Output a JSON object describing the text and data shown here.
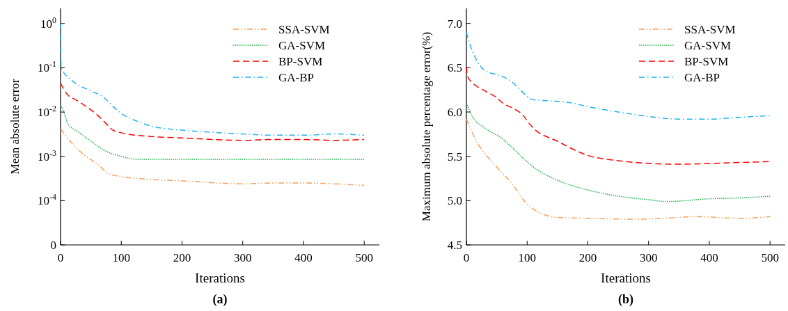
{
  "chart_data": [
    {
      "type": "line",
      "title": "(a)",
      "xlabel": "Iterations",
      "ylabel": "Mean absolute error",
      "log": "y",
      "xlim": [
        0,
        525
      ],
      "xticks": [
        0,
        100,
        200,
        300,
        400,
        500
      ],
      "ylim": [
        1e-05,
        2.2
      ],
      "yticks": [
        {
          "value": 1e-05,
          "label": "0"
        },
        {
          "value": 0.0001,
          "label": "10$^{-4}$"
        },
        {
          "value": 0.001,
          "label": "10$^{-3}$"
        },
        {
          "value": 0.01,
          "label": "10$^{-2}$"
        },
        {
          "value": 0.1,
          "label": "10$^{-1}$"
        },
        {
          "value": 1,
          "label": "10$^{0}$"
        }
      ],
      "grid": false,
      "legend": "top right",
      "series": [
        {
          "name": "SSA-SVM",
          "color": "#f5a05a",
          "line_style": "dashdotdot",
          "x": [
            0,
            20,
            40,
            60,
            80,
            100,
            150,
            200,
            300,
            350,
            400,
            450,
            500
          ],
          "values": [
            0.0042,
            0.0019,
            0.00105,
            0.00068,
            0.0004,
            0.00035,
            0.0003,
            0.00028,
            0.00024,
            0.00025,
            0.00025,
            0.00024,
            0.00022
          ]
        },
        {
          "name": "GA-SVM",
          "color": "#22b04b",
          "line_style": "dotted",
          "x": [
            0,
            5,
            12,
            30,
            50,
            75,
            100,
            125,
            500
          ],
          "values": [
            0.0146,
            0.0105,
            0.0055,
            0.0035,
            0.0022,
            0.0013,
            0.001,
            0.00086,
            0.00086
          ]
        },
        {
          "name": "BP-SVM",
          "color": "#ff0000",
          "line_style": "dashed",
          "x": [
            0,
            10,
            25,
            40,
            60,
            75,
            85,
            100,
            150,
            200,
            300,
            350,
            400,
            450,
            500
          ],
          "values": [
            0.045,
            0.026,
            0.019,
            0.014,
            0.0087,
            0.0055,
            0.004,
            0.0034,
            0.0028,
            0.0026,
            0.0023,
            0.0024,
            0.0024,
            0.0023,
            0.0024
          ]
        },
        {
          "name": "GA-BP",
          "color": "#1eb4f0",
          "line_style": "dashdot",
          "x": [
            0,
            1,
            20,
            50,
            70,
            85,
            100,
            125,
            150,
            200,
            250,
            300,
            350,
            400,
            450,
            500
          ],
          "values": [
            1,
            0.1,
            0.05,
            0.03,
            0.022,
            0.014,
            0.0093,
            0.0063,
            0.0048,
            0.0039,
            0.0035,
            0.0032,
            0.003,
            0.003,
            0.0032,
            0.003
          ]
        }
      ]
    },
    {
      "type": "line",
      "title": "(b)",
      "xlabel": "Iterations",
      "ylabel": "Maximum absolute percentage error(%)",
      "xlim": [
        0,
        525
      ],
      "xticks": [
        0,
        100,
        200,
        300,
        400,
        500
      ],
      "ylim": [
        4.5,
        7.17
      ],
      "yticks": [
        {
          "value": 4.5,
          "label": "4.5"
        },
        {
          "value": 5,
          "label": "5.0"
        },
        {
          "value": 5.5,
          "label": "5.5"
        },
        {
          "value": 6,
          "label": "6.0"
        },
        {
          "value": 6.5,
          "label": "6.5"
        },
        {
          "value": 7,
          "label": "7.0"
        }
      ],
      "grid": false,
      "legend": "top right",
      "series": [
        {
          "name": "SSA-SVM",
          "color": "#f5a05a",
          "line_style": "dashdotdot",
          "x": [
            0,
            15,
            50,
            75,
            100,
            125,
            150,
            200,
            280,
            350,
            375,
            450,
            500
          ],
          "values": [
            5.92,
            5.69,
            5.38,
            5.19,
            4.96,
            4.85,
            4.81,
            4.8,
            4.79,
            4.81,
            4.82,
            4.8,
            4.82
          ]
        },
        {
          "name": "GA-SVM",
          "color": "#22b04b",
          "line_style": "dotted",
          "x": [
            0,
            10,
            30,
            57,
            75,
            95,
            110,
            150,
            200,
            250,
            300,
            330,
            400,
            450,
            500
          ],
          "values": [
            6.1,
            5.95,
            5.82,
            5.71,
            5.6,
            5.47,
            5.38,
            5.23,
            5.12,
            5.05,
            5.01,
            4.99,
            5.02,
            5.03,
            5.05
          ]
        },
        {
          "name": "BP-SVM",
          "color": "#ff0000",
          "line_style": "dashed",
          "x": [
            0,
            2,
            10,
            30,
            50,
            60,
            80,
            95,
            100,
            110,
            150,
            200,
            250,
            300,
            350,
            400,
            450,
            500
          ],
          "values": [
            6.51,
            6.4,
            6.33,
            6.24,
            6.16,
            6.1,
            6.03,
            5.95,
            5.9,
            5.82,
            5.67,
            5.51,
            5.45,
            5.42,
            5.41,
            5.42,
            5.43,
            5.44
          ]
        },
        {
          "name": "GA-BP",
          "color": "#1eb4f0",
          "line_style": "dashdot",
          "x": [
            0,
            5,
            15,
            30,
            60,
            75,
            90,
            110,
            150,
            175,
            200,
            250,
            300,
            350,
            375,
            400,
            450,
            500
          ],
          "values": [
            6.9,
            6.78,
            6.61,
            6.47,
            6.4,
            6.34,
            6.24,
            6.14,
            6.12,
            6.1,
            6.06,
            6,
            5.95,
            5.92,
            5.92,
            5.92,
            5.94,
            5.96
          ]
        }
      ]
    }
  ]
}
